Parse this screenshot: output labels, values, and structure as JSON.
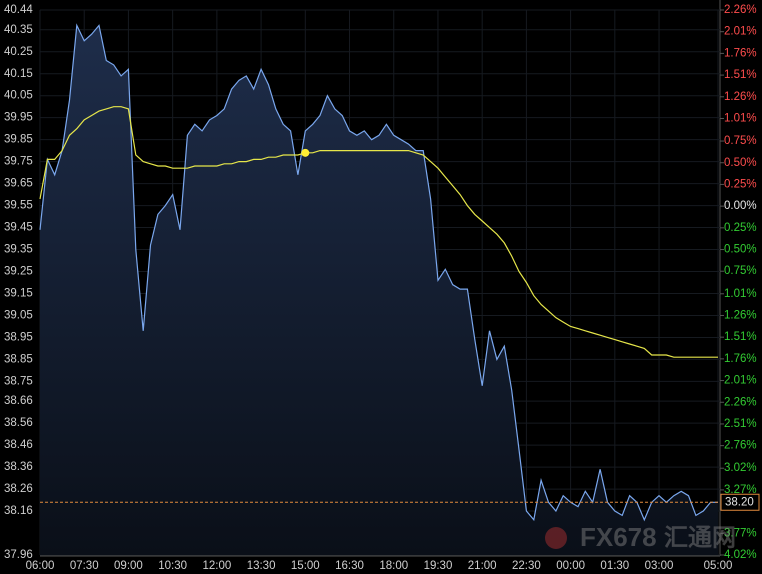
{
  "chart_data": {
    "type": "line",
    "x": [
      "06:00",
      "06:15",
      "06:30",
      "06:45",
      "07:00",
      "07:15",
      "07:30",
      "07:45",
      "08:00",
      "08:15",
      "08:30",
      "08:45",
      "09:00",
      "09:15",
      "09:30",
      "09:45",
      "10:00",
      "10:15",
      "10:30",
      "10:45",
      "11:00",
      "11:15",
      "11:30",
      "11:45",
      "12:00",
      "12:15",
      "12:30",
      "12:45",
      "13:00",
      "13:15",
      "13:30",
      "13:45",
      "14:00",
      "14:15",
      "14:30",
      "14:45",
      "15:00",
      "15:15",
      "15:30",
      "15:45",
      "16:00",
      "16:15",
      "16:30",
      "16:45",
      "17:00",
      "17:15",
      "17:30",
      "17:45",
      "18:00",
      "18:15",
      "18:30",
      "18:45",
      "19:00",
      "19:15",
      "19:30",
      "19:45",
      "20:00",
      "20:15",
      "20:30",
      "20:45",
      "21:00",
      "21:15",
      "21:30",
      "21:45",
      "22:00",
      "22:15",
      "22:30",
      "22:45",
      "23:00",
      "23:15",
      "23:30",
      "23:45",
      "00:00",
      "00:15",
      "00:30",
      "00:45",
      "01:00",
      "01:15",
      "01:30",
      "01:45",
      "02:00",
      "02:15",
      "02:30",
      "02:45",
      "03:00",
      "03:15",
      "03:30",
      "03:45",
      "04:00",
      "04:15",
      "04:30",
      "04:45",
      "05:00"
    ],
    "series": [
      {
        "color": "#7aa7ee",
        "fill": true,
        "values": [
          39.44,
          39.76,
          39.69,
          39.8,
          40.03,
          40.37,
          40.3,
          40.33,
          40.37,
          40.21,
          40.19,
          40.14,
          40.17,
          39.35,
          38.98,
          39.37,
          39.51,
          39.55,
          39.6,
          39.44,
          39.87,
          39.92,
          39.89,
          39.94,
          39.96,
          39.99,
          40.08,
          40.12,
          40.14,
          40.08,
          40.17,
          40.1,
          39.99,
          39.92,
          39.89,
          39.69,
          39.89,
          39.92,
          39.96,
          40.05,
          39.99,
          39.96,
          39.89,
          39.87,
          39.89,
          39.85,
          39.87,
          39.92,
          39.87,
          39.85,
          39.83,
          39.8,
          39.8,
          39.58,
          39.21,
          39.26,
          39.19,
          39.17,
          39.17,
          38.94,
          38.73,
          38.98,
          38.85,
          38.91,
          38.71,
          38.44,
          38.16,
          38.12,
          38.3,
          38.2,
          38.16,
          38.23,
          38.2,
          38.18,
          38.25,
          38.2,
          38.35,
          38.2,
          38.16,
          38.14,
          38.23,
          38.2,
          38.12,
          38.2,
          38.23,
          38.2,
          38.23,
          38.25,
          38.23,
          38.14,
          38.16,
          38.2,
          38.2
        ]
      },
      {
        "color": "#e6e64a",
        "fill": false,
        "values": [
          39.58,
          39.76,
          39.76,
          39.8,
          39.87,
          39.9,
          39.94,
          39.96,
          39.98,
          39.99,
          40.0,
          40.0,
          39.99,
          39.78,
          39.75,
          39.74,
          39.73,
          39.73,
          39.72,
          39.72,
          39.72,
          39.73,
          39.73,
          39.73,
          39.73,
          39.74,
          39.74,
          39.75,
          39.75,
          39.76,
          39.76,
          39.77,
          39.77,
          39.78,
          39.78,
          39.78,
          39.79,
          39.79,
          39.8,
          39.8,
          39.8,
          39.8,
          39.8,
          39.8,
          39.8,
          39.8,
          39.8,
          39.8,
          39.8,
          39.8,
          39.8,
          39.79,
          39.78,
          39.75,
          39.72,
          39.68,
          39.64,
          39.6,
          39.55,
          39.51,
          39.48,
          39.45,
          39.42,
          39.38,
          39.32,
          39.25,
          39.2,
          39.14,
          39.1,
          39.07,
          39.04,
          39.02,
          39.0,
          38.99,
          38.98,
          38.97,
          38.96,
          38.95,
          38.94,
          38.93,
          38.92,
          38.91,
          38.9,
          38.87,
          38.87,
          38.87,
          38.86,
          38.86,
          38.86,
          38.86,
          38.86,
          38.86,
          38.86
        ]
      }
    ],
    "marker": {
      "x": "15:00",
      "value": 39.79,
      "color": "#ffee33"
    },
    "last_price": {
      "value": 38.2,
      "label": "38.20",
      "color": "#e08a3c"
    },
    "xlim": [
      "06:00",
      "05:00"
    ],
    "xticks": [
      "06:00",
      "07:30",
      "09:00",
      "10:30",
      "12:00",
      "13:30",
      "15:00",
      "16:30",
      "18:00",
      "19:30",
      "21:00",
      "22:30",
      "00:00",
      "01:30",
      "03:00",
      "05:00"
    ],
    "ylim": [
      37.96,
      40.44
    ],
    "yticks": [
      40.44,
      40.35,
      40.25,
      40.15,
      40.05,
      39.95,
      39.85,
      39.75,
      39.65,
      39.55,
      39.45,
      39.35,
      39.25,
      39.15,
      39.05,
      38.95,
      38.85,
      38.75,
      38.66,
      38.56,
      38.46,
      38.36,
      38.26,
      38.16,
      37.96
    ],
    "y2lim": [
      -4.02,
      2.26
    ],
    "y2ticks": [
      {
        "value": 2.26,
        "label": "2.26%"
      },
      {
        "value": 2.01,
        "label": "2.01%"
      },
      {
        "value": 1.76,
        "label": "1.76%"
      },
      {
        "value": 1.51,
        "label": "1.51%"
      },
      {
        "value": 1.26,
        "label": "1.26%"
      },
      {
        "value": 1.01,
        "label": "1.01%"
      },
      {
        "value": 0.75,
        "label": "0.75%"
      },
      {
        "value": 0.5,
        "label": "0.50%"
      },
      {
        "value": 0.25,
        "label": "0.25%"
      },
      {
        "value": 0,
        "label": "0.00%"
      },
      {
        "value": -0.25,
        "label": "0.25%"
      },
      {
        "value": -0.5,
        "label": "0.50%"
      },
      {
        "value": -0.75,
        "label": "0.75%"
      },
      {
        "value": -1.01,
        "label": "1.01%"
      },
      {
        "value": -1.26,
        "label": "1.26%"
      },
      {
        "value": -1.51,
        "label": "1.51%"
      },
      {
        "value": -1.76,
        "label": "1.76%"
      },
      {
        "value": -2.01,
        "label": "2.01%"
      },
      {
        "value": -2.26,
        "label": "2.26%"
      },
      {
        "value": -2.51,
        "label": "2.51%"
      },
      {
        "value": -2.76,
        "label": "2.76%"
      },
      {
        "value": -3.02,
        "label": "3.02%"
      },
      {
        "value": -3.27,
        "label": "3.27%"
      },
      {
        "value": -3.77,
        "label": "3.77%"
      },
      {
        "value": -4.02,
        "label": "4.02%"
      }
    ],
    "up_color": "#ff4d4d",
    "down_color": "#33cc33",
    "flat_color": "#e6e6e6",
    "grid": true,
    "watermark": [
      "FX678",
      "汇通网"
    ]
  }
}
